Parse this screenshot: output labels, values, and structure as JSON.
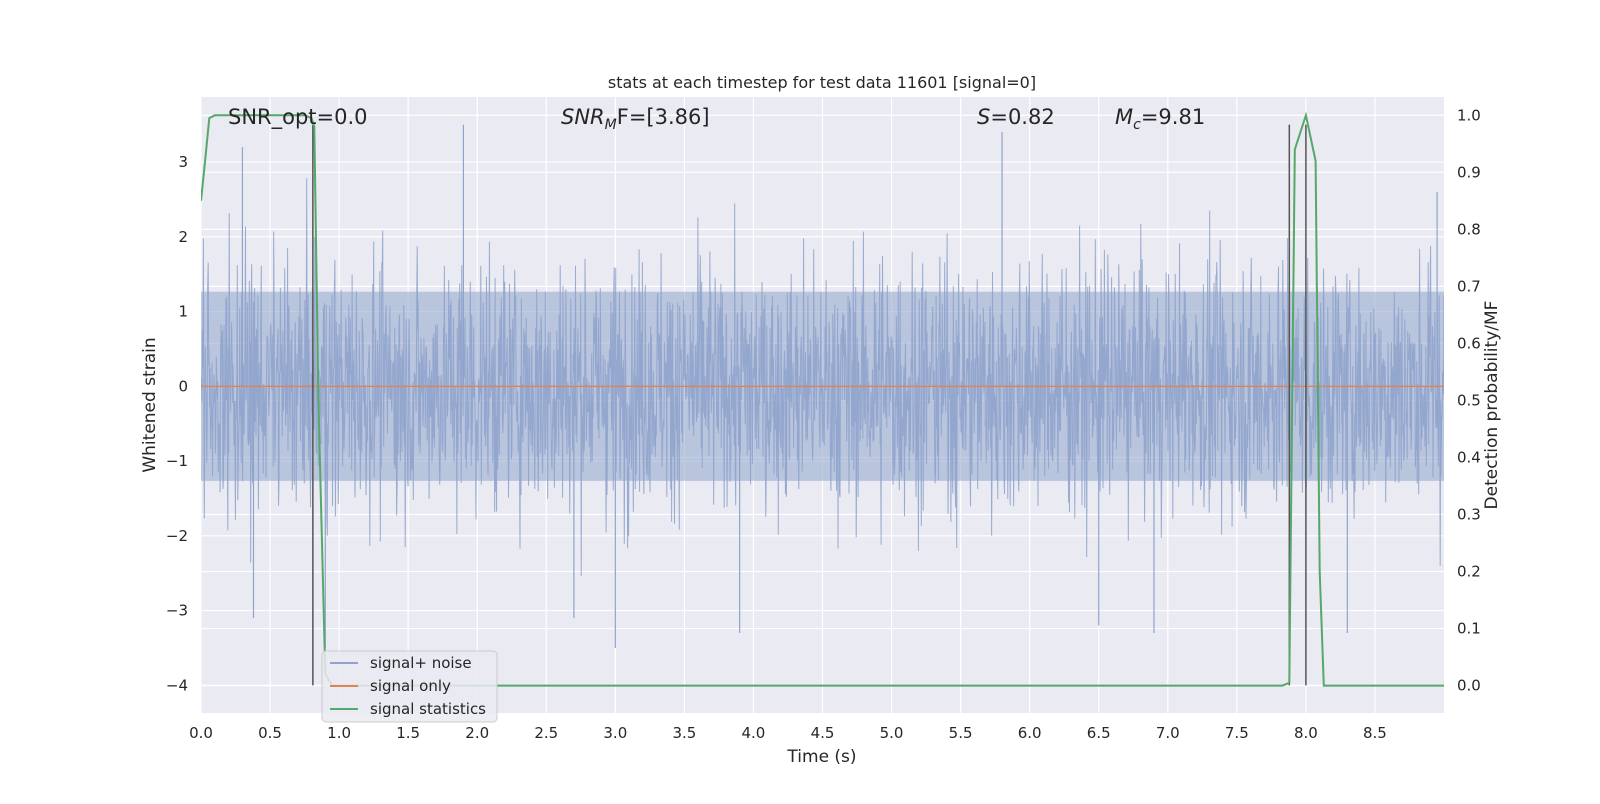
{
  "chart_data": {
    "type": "line",
    "title": "stats at each timestep for test data 11601 [signal=0]",
    "xlabel": "Time (s)",
    "ylabel": "Whitened strain",
    "ylabel_right": "Detection probability/MF",
    "xlim": [
      0.0,
      9.0
    ],
    "ylim": [
      -4.37,
      3.87
    ],
    "ylim_right": [
      -0.048,
      1.032
    ],
    "xticks": [
      0.0,
      0.5,
      1.0,
      1.5,
      2.0,
      2.5,
      3.0,
      3.5,
      4.0,
      4.5,
      5.0,
      5.5,
      6.0,
      6.5,
      7.0,
      7.5,
      8.0,
      8.5
    ],
    "xtick_labels": [
      "0.0",
      "0.5",
      "1.0",
      "1.5",
      "2.0",
      "2.5",
      "3.0",
      "3.5",
      "4.0",
      "4.5",
      "5.0",
      "5.5",
      "6.0",
      "6.5",
      "7.0",
      "7.5",
      "8.0",
      "8.5"
    ],
    "yticks": [
      3,
      2,
      1,
      0,
      -1,
      -2,
      -3,
      -4
    ],
    "ytick_labels": [
      "3",
      "2",
      "1",
      "0",
      "−1",
      "−2",
      "−3",
      "−4"
    ],
    "yticks_right": [
      1.0,
      0.9,
      0.8,
      0.7,
      0.6,
      0.5,
      0.4,
      0.3,
      0.2,
      0.1,
      0.0
    ],
    "ytick_labels_right": [
      "1.0",
      "0.9",
      "0.8",
      "0.7",
      "0.6",
      "0.5",
      "0.4",
      "0.3",
      "0.2",
      "0.1",
      "0.0"
    ],
    "grid": true,
    "legend_position": "lower-left",
    "annotations": {
      "snr_opt": "SNR_opt=0.0",
      "snr_mf_prefix": "SNR",
      "snr_mf_sub": "M",
      "snr_mf_rest": "F=[3.86]",
      "s_prefix": "S",
      "s_rest": "=0.82",
      "mc_prefix": "M",
      "mc_sub": "c",
      "mc_rest": "=9.81"
    },
    "series": [
      {
        "name": "signal+ noise",
        "color": "#8fa4cc",
        "note_form": "dense noise trace",
        "amplitude_envelope": [
          2.3,
          -2.3
        ],
        "peak_values": [
          [
            0.3,
            3.2
          ],
          [
            0.38,
            -3.1
          ],
          [
            0.9,
            -3.5
          ],
          [
            1.9,
            3.5
          ],
          [
            2.7,
            -3.1
          ],
          [
            3.0,
            -3.5
          ],
          [
            3.9,
            -3.3
          ],
          [
            5.8,
            3.4
          ],
          [
            6.5,
            -3.2
          ],
          [
            6.9,
            -3.3
          ],
          [
            8.3,
            -3.3
          ],
          [
            8.95,
            2.6
          ]
        ]
      },
      {
        "name": "signal only",
        "color": "#dd8452",
        "x": [
          0.0,
          9.0
        ],
        "y": [
          0.0,
          0.0
        ]
      },
      {
        "name": "signal statistics",
        "color": "#55a868",
        "axis": "right",
        "x": [
          0.0,
          0.03,
          0.06,
          0.1,
          0.75,
          0.8,
          0.82,
          0.85,
          0.9,
          0.95,
          7.83,
          7.88,
          7.92,
          8.0,
          8.07,
          8.1,
          8.13,
          9.0
        ],
        "y": [
          0.85,
          0.92,
          0.995,
          1.0,
          1.0,
          0.995,
          0.98,
          0.5,
          0.02,
          0.0,
          0.0,
          0.005,
          0.94,
          1.0,
          0.92,
          0.2,
          0.0,
          0.0
        ]
      }
    ],
    "vertical_lines": [
      {
        "x": 0.81,
        "y_range": [
          -4.0,
          3.5
        ],
        "color": "#555555"
      },
      {
        "x": 7.88,
        "y_range": [
          -4.0,
          3.5
        ],
        "color": "#555555"
      },
      {
        "x": 8.0,
        "y_range": [
          -4.0,
          3.5
        ],
        "color": "#555555"
      }
    ]
  },
  "legend": {
    "items": [
      {
        "label": "signal+ noise",
        "color": "#8fa4cc"
      },
      {
        "label": "signal only",
        "color": "#dd8452"
      },
      {
        "label": "signal statistics",
        "color": "#55a868"
      }
    ]
  }
}
